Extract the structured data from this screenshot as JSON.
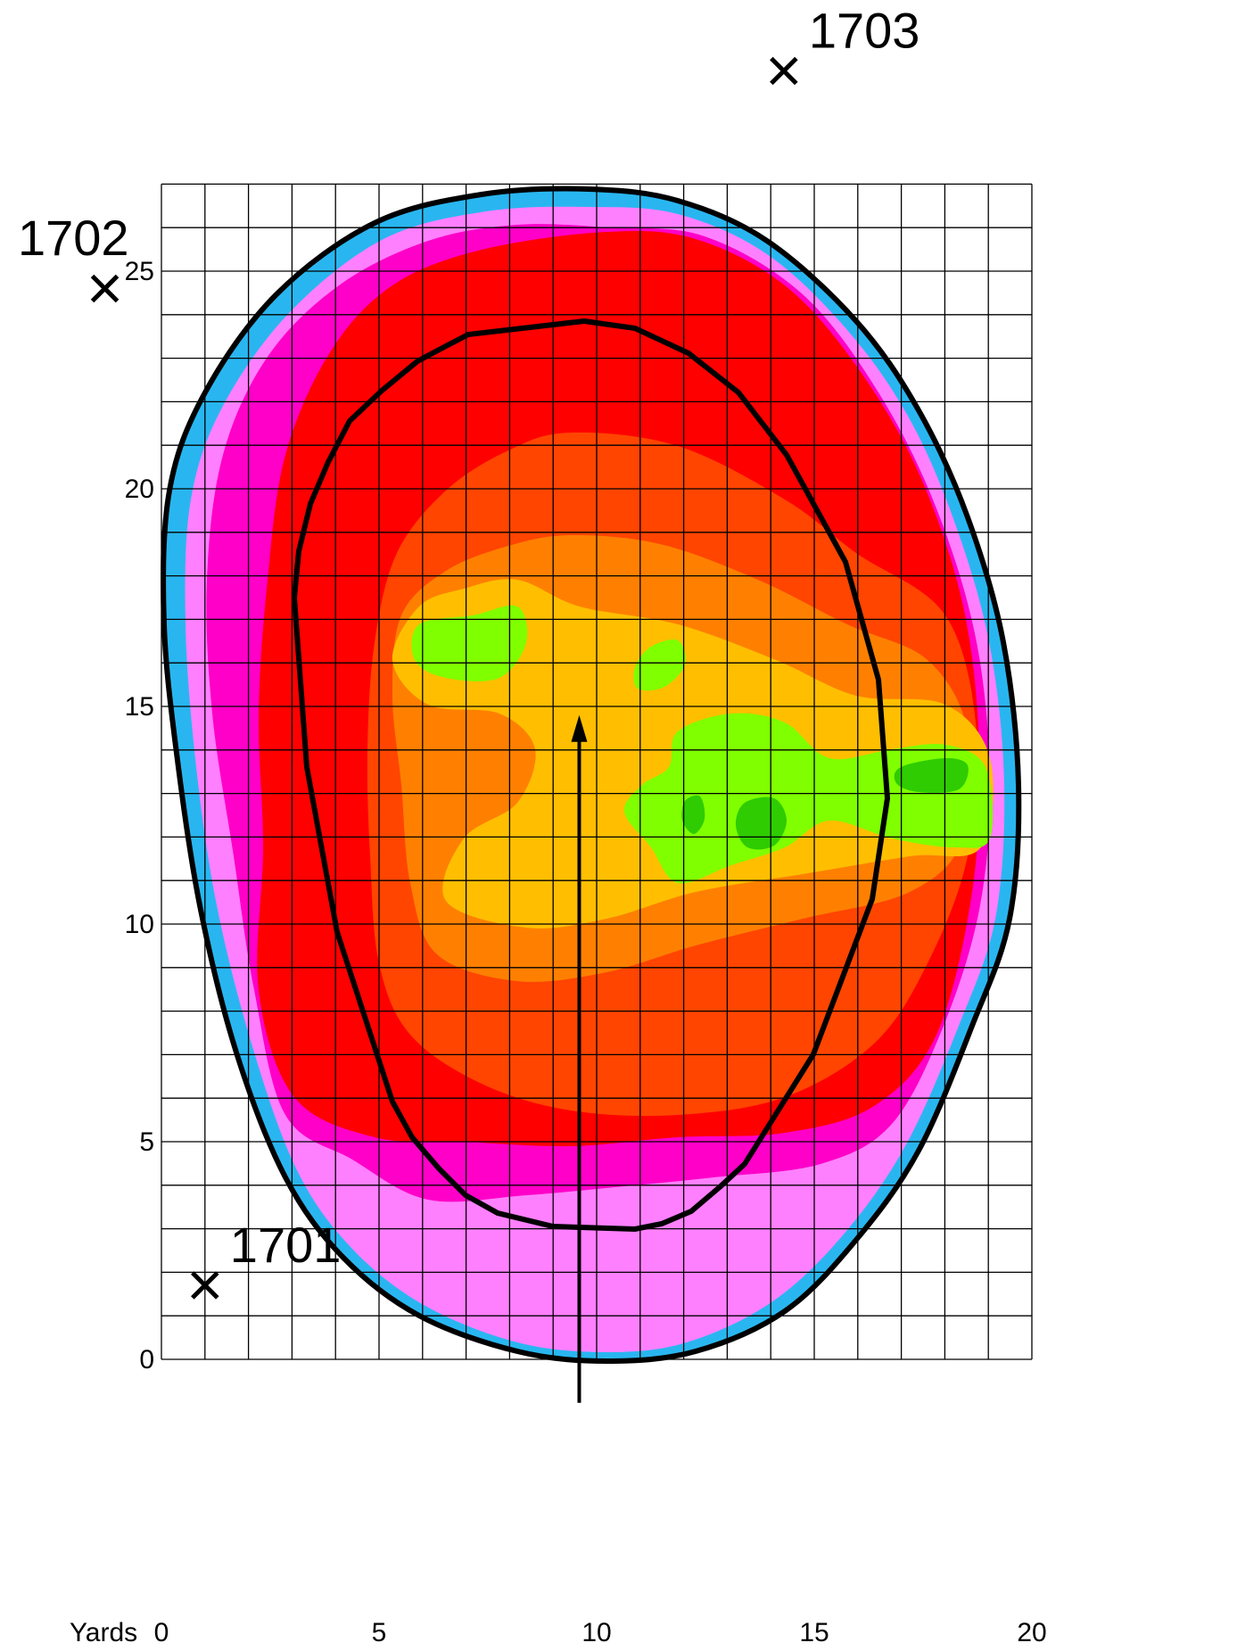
{
  "map": {
    "axis": {
      "unit_label": "Yards",
      "x_ticks": [
        "0",
        "5",
        "10",
        "15",
        "20"
      ],
      "y_ticks": [
        "0",
        "5",
        "10",
        "15",
        "20",
        "25"
      ],
      "x_range": [
        0,
        20
      ],
      "y_range": [
        0,
        27
      ],
      "grid_step": 1
    },
    "stations": [
      {
        "id": "1701",
        "x": 1.0,
        "y": 1.7
      },
      {
        "id": "1702",
        "x": -1.3,
        "y": 24.6
      },
      {
        "id": "1703",
        "x": 14.3,
        "y": 29.6
      }
    ],
    "direction_arrow": {
      "x": 9.6,
      "y_from": -1.0,
      "y_to": 14.8
    },
    "colors": {
      "boundary": "#000000",
      "edge": "#29b6f0",
      "very_low": "#ff80ff",
      "low": "#ff00c8",
      "mid_low": "#ff0000",
      "mid": "#ff4500",
      "mid_high": "#ff8000",
      "high": "#ffbf00",
      "very_high": "#80ff00",
      "peak": "#2ecc00"
    }
  }
}
